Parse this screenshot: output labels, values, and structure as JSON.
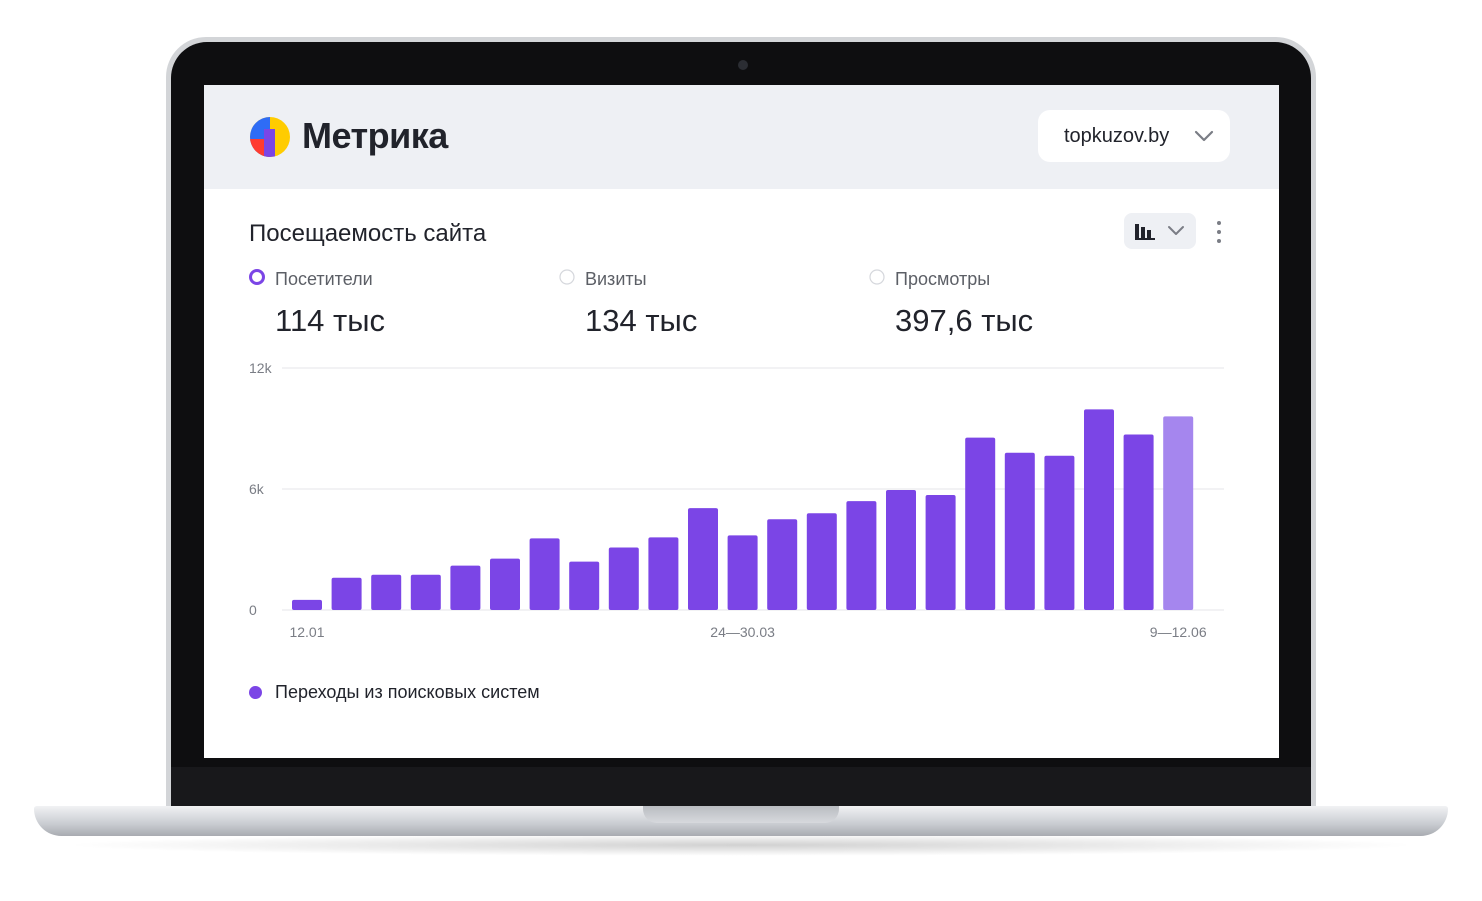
{
  "header": {
    "app_name": "Метрика",
    "site_selector": {
      "value": "topkuzov.by"
    }
  },
  "widget": {
    "title": "Посещаемость сайта",
    "metrics": [
      {
        "label": "Посетители",
        "value": "114 тыс",
        "selected": true
      },
      {
        "label": "Визиты",
        "value": "134 тыс",
        "selected": false
      },
      {
        "label": "Просмотры",
        "value": "397,6 тыс",
        "selected": false
      }
    ],
    "legend": {
      "label": "Переходы из поисковых систем",
      "color": "#7b45e6"
    }
  },
  "colors": {
    "accent": "#7b45e6",
    "accent_partial": "#a586ee",
    "header_bg": "#eef0f4"
  },
  "icons": [
    "yandex-metrica-logo-icon",
    "chevron-down-icon",
    "bar-chart-icon",
    "more-vertical-icon",
    "radio-icon"
  ],
  "chart_data": {
    "type": "bar",
    "y_ticks": [
      "12k",
      "6k",
      "0"
    ],
    "ylim": [
      0,
      12000
    ],
    "x_tick_labels": [
      {
        "index": 0,
        "label": "12.01"
      },
      {
        "index": 11,
        "label": "24—30.03"
      },
      {
        "index": 22,
        "label": "9—12.06"
      }
    ],
    "values": [
      500,
      1600,
      1750,
      1750,
      2200,
      2550,
      3550,
      2400,
      3100,
      3600,
      5050,
      3700,
      4500,
      4800,
      5400,
      5950,
      5700,
      8550,
      7800,
      7650,
      9950,
      8700,
      9600
    ],
    "partial_last": true,
    "grid": true
  }
}
